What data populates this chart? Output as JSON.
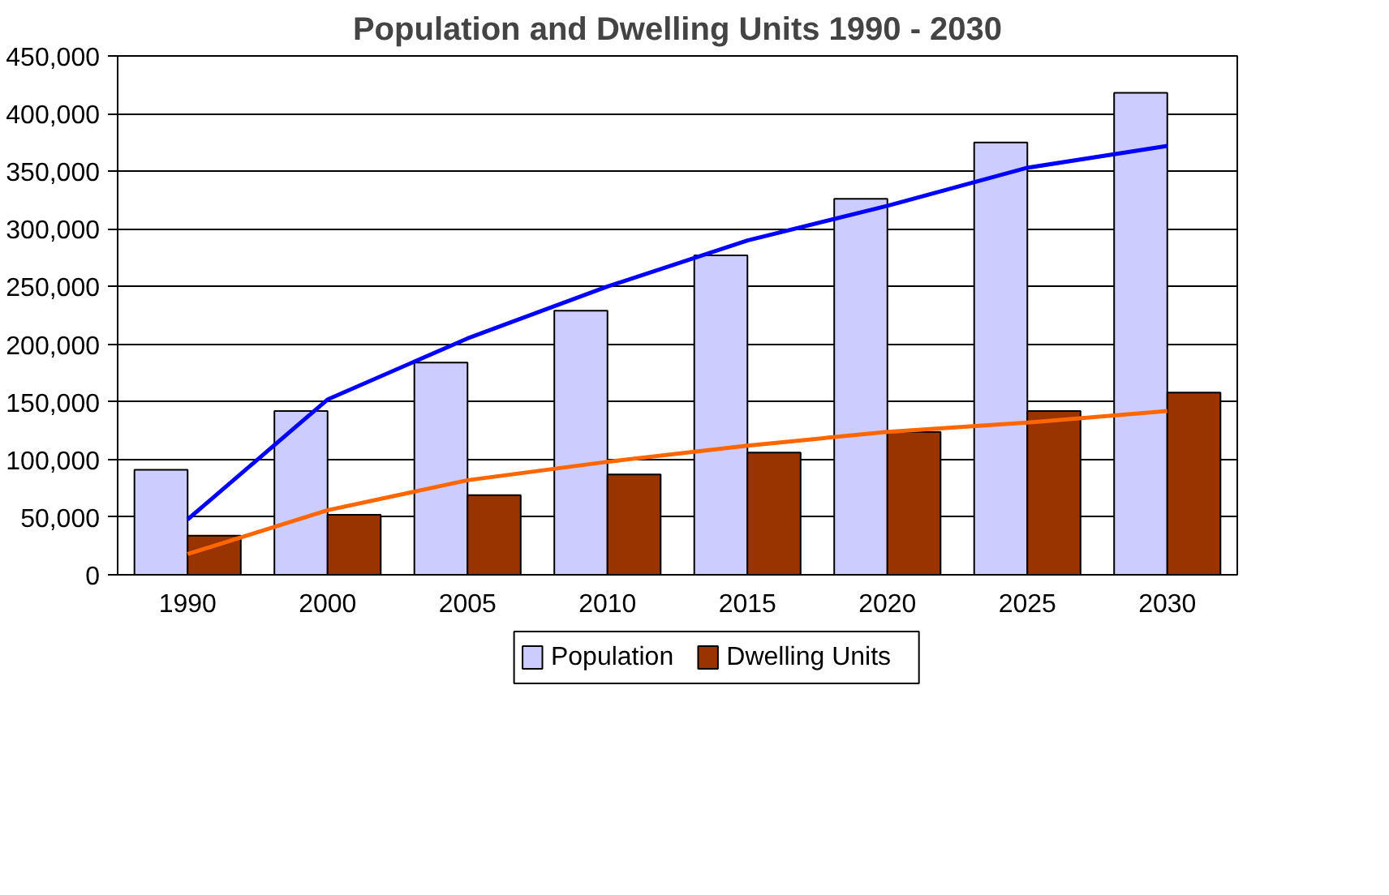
{
  "chart_data": {
    "type": "bar",
    "title": "Population and Dwelling Units 1990 - 2030",
    "categories": [
      "1990",
      "2000",
      "2005",
      "2010",
      "2015",
      "2020",
      "2025",
      "2030"
    ],
    "series": [
      {
        "name": "Population",
        "color": "#ccccff",
        "values": [
          91000,
          142000,
          184000,
          229000,
          277000,
          326000,
          375000,
          418000
        ]
      },
      {
        "name": "Dwelling Units",
        "color": "#993300",
        "values": [
          34000,
          52000,
          69000,
          87000,
          106000,
          124000,
          142000,
          158000
        ]
      },
      {
        "type": "line",
        "color": "#0000ff",
        "values": [
          48000,
          152000,
          205000,
          250000,
          290000,
          320000,
          353000,
          372000
        ]
      },
      {
        "type": "line",
        "color": "#ff6600",
        "values": [
          18000,
          56000,
          82000,
          98000,
          112000,
          124000,
          132000,
          142000
        ]
      }
    ],
    "ylim": [
      0,
      450000
    ],
    "yticks": [
      {
        "value": 0,
        "label": "0"
      },
      {
        "value": 50000,
        "label": "50,000"
      },
      {
        "value": 100000,
        "label": "100,000"
      },
      {
        "value": 150000,
        "label": "150,000"
      },
      {
        "value": 200000,
        "label": "200,000"
      },
      {
        "value": 250000,
        "label": "250,000"
      },
      {
        "value": 300000,
        "label": "300,000"
      },
      {
        "value": 350000,
        "label": "350,000"
      },
      {
        "value": 400000,
        "label": "400,000"
      },
      {
        "value": 450000,
        "label": "450,000"
      }
    ],
    "grid": "y",
    "legend": "bottom"
  }
}
